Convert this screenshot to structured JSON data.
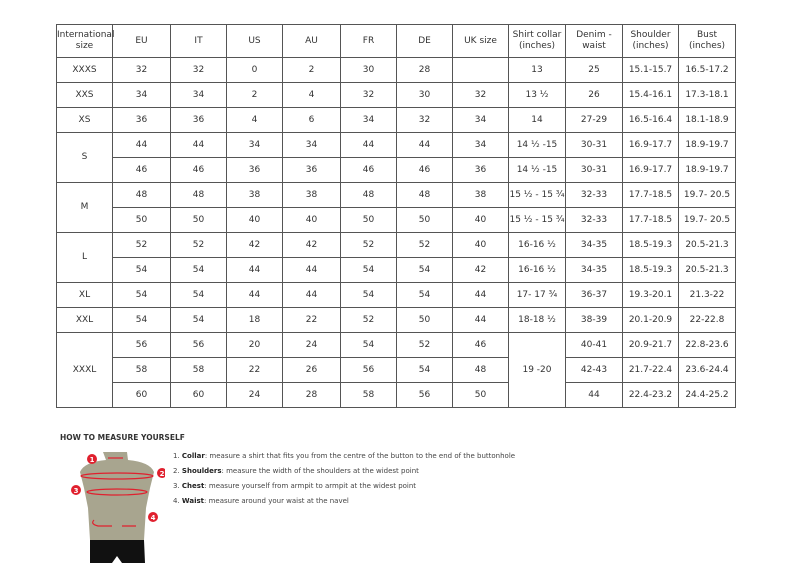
{
  "headers": [
    "International size",
    "EU",
    "IT",
    "US",
    "AU",
    "FR",
    "DE",
    "UK size",
    "Shirt collar (inches)",
    "Denim - waist",
    "Shoulder (inches)",
    "Bust (inches)"
  ],
  "groups": [
    {
      "size": "XXXS",
      "rows": [
        [
          "32",
          "32",
          "0",
          "2",
          "30",
          "28",
          "",
          "13",
          "25",
          "15.1-15.7",
          "16.5-17.2"
        ]
      ]
    },
    {
      "size": "XXS",
      "rows": [
        [
          "34",
          "34",
          "2",
          "4",
          "32",
          "30",
          "32",
          "13 ½",
          "26",
          "15.4-16.1",
          "17.3-18.1"
        ]
      ]
    },
    {
      "size": "XS",
      "rows": [
        [
          "36",
          "36",
          "4",
          "6",
          "34",
          "32",
          "34",
          "14",
          "27-29",
          "16.5-16.4",
          "18.1-18.9"
        ]
      ]
    },
    {
      "size": "S",
      "rows": [
        [
          "44",
          "44",
          "34",
          "34",
          "44",
          "44",
          "34",
          "14 ½ -15",
          "30-31",
          "16.9-17.7",
          "18.9-19.7"
        ],
        [
          "46",
          "46",
          "36",
          "36",
          "46",
          "46",
          "36",
          "14 ½ -15",
          "30-31",
          "16.9-17.7",
          "18.9-19.7"
        ]
      ]
    },
    {
      "size": "M",
      "rows": [
        [
          "48",
          "48",
          "38",
          "38",
          "48",
          "48",
          "38",
          "15 ½ - 15 ¾",
          "32-33",
          "17.7-18.5",
          "19.7- 20.5"
        ],
        [
          "50",
          "50",
          "40",
          "40",
          "50",
          "50",
          "40",
          "15 ½ - 15 ¾",
          "32-33",
          "17.7-18.5",
          "19.7- 20.5"
        ]
      ]
    },
    {
      "size": "L",
      "rows": [
        [
          "52",
          "52",
          "42",
          "42",
          "52",
          "52",
          "40",
          "16-16 ½",
          "34-35",
          "18.5-19.3",
          "20.5-21.3"
        ],
        [
          "54",
          "54",
          "44",
          "44",
          "54",
          "54",
          "42",
          "16-16 ½",
          "34-35",
          "18.5-19.3",
          "20.5-21.3"
        ]
      ]
    },
    {
      "size": "XL",
      "rows": [
        [
          "54",
          "54",
          "44",
          "44",
          "54",
          "54",
          "44",
          "17- 17 ¾",
          "36-37",
          "19.3-20.1",
          "21.3-22"
        ]
      ]
    },
    {
      "size": "XXL",
      "rows": [
        [
          "54",
          "54",
          "18",
          "22",
          "52",
          "50",
          "44",
          "18-18 ½",
          "38-39",
          "20.1-20.9",
          "22-22.8"
        ]
      ]
    },
    {
      "size": "XXXL",
      "collar": "19 -20",
      "rows": [
        [
          "56",
          "56",
          "20",
          "24",
          "54",
          "52",
          "46",
          null,
          "40-41",
          "20.9-21.7",
          "22.8-23.6"
        ],
        [
          "58",
          "58",
          "22",
          "26",
          "56",
          "54",
          "48",
          null,
          "42-43",
          "21.7-22.4",
          "23.6-24.4"
        ],
        [
          "60",
          "60",
          "24",
          "28",
          "58",
          "56",
          "50",
          null,
          "44",
          "22.4-23.2",
          "24.4-25.2"
        ]
      ]
    }
  ],
  "measure": {
    "title": "HOW TO MEASURE YOURSELF",
    "steps": [
      {
        "num": "1.",
        "label": "Collar",
        "text": ": measure a shirt that fits you from the centre of the button to the end of the buttonhole"
      },
      {
        "num": "2.",
        "label": "Shoulders",
        "text": ": measure the width of the shoulders at the widest point"
      },
      {
        "num": "3.",
        "label": "Chest",
        "text": ": measure yourself from armpit to armpit at the widest point"
      },
      {
        "num": "4.",
        "label": "Waist",
        "text": ": measure around your waist at the navel"
      }
    ],
    "markers": [
      "1",
      "2",
      "3",
      "4"
    ],
    "accent": "#e0202e"
  }
}
